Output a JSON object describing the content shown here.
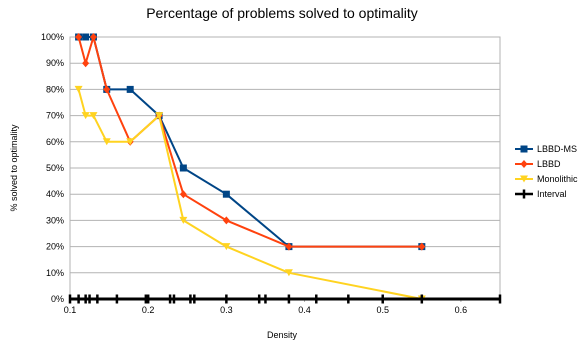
{
  "chart_data": {
    "type": "line",
    "title": "Percentage of problems solved to optimality",
    "xlabel": "Density",
    "ylabel": "% solved to optimality",
    "xlim": [
      0.1,
      0.65
    ],
    "ylim": [
      0,
      100
    ],
    "x_ticks": [
      "0.1",
      "0.2",
      "0.3",
      "0.4",
      "0.5",
      "0.6"
    ],
    "y_ticks": [
      "0%",
      "10%",
      "20%",
      "30%",
      "40%",
      "50%",
      "60%",
      "70%",
      "80%",
      "90%",
      "100%"
    ],
    "grid": "horizontal",
    "legend_position": "right",
    "series": [
      {
        "name": "LBBD-MS",
        "color": "#004586",
        "marker": "square",
        "x": [
          0.111,
          0.12,
          0.13,
          0.147,
          0.177,
          0.214,
          0.245,
          0.3,
          0.38,
          0.55
        ],
        "y": [
          100,
          100,
          100,
          80,
          80,
          70,
          50,
          40,
          20,
          20
        ]
      },
      {
        "name": "LBBD",
        "color": "#ff420e",
        "marker": "diamond",
        "x": [
          0.111,
          0.12,
          0.13,
          0.147,
          0.177,
          0.214,
          0.245,
          0.3,
          0.38,
          0.55
        ],
        "y": [
          100,
          90,
          100,
          80,
          60,
          70,
          40,
          30,
          20,
          20
        ]
      },
      {
        "name": "Monolithic",
        "color": "#ffd320",
        "marker": "triangle-down",
        "x": [
          0.111,
          0.12,
          0.13,
          0.147,
          0.177,
          0.214,
          0.245,
          0.3,
          0.38,
          0.55
        ],
        "y": [
          80,
          70,
          70,
          60,
          60,
          70,
          30,
          20,
          10,
          0
        ]
      },
      {
        "name": "Interval",
        "color": "#000000",
        "marker": "cross",
        "x": [
          0.1,
          0.111,
          0.12,
          0.125,
          0.135,
          0.16,
          0.197,
          0.2,
          0.228,
          0.233,
          0.254,
          0.259,
          0.3,
          0.342,
          0.35,
          0.38,
          0.415,
          0.456,
          0.5,
          0.55,
          0.65
        ],
        "y": [
          0,
          0,
          0,
          0,
          0,
          0,
          0,
          0,
          0,
          0,
          0,
          0,
          0,
          0,
          0,
          0,
          0,
          0,
          0,
          0,
          0
        ]
      }
    ]
  }
}
